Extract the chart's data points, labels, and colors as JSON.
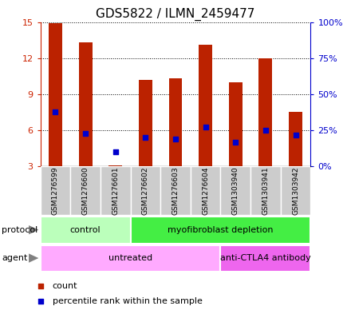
{
  "title": "GDS5822 / ILMN_2459477",
  "samples": [
    "GSM1276599",
    "GSM1276600",
    "GSM1276601",
    "GSM1276602",
    "GSM1276603",
    "GSM1276604",
    "GSM1303940",
    "GSM1303941",
    "GSM1303942"
  ],
  "counts": [
    14.9,
    13.3,
    3.1,
    10.2,
    10.3,
    13.1,
    10.0,
    12.0,
    7.5
  ],
  "percentiles": [
    38,
    23,
    10,
    20,
    19,
    27,
    17,
    25,
    22
  ],
  "bar_color": "#BB2200",
  "dot_color": "#0000CC",
  "ylim_left": [
    3,
    15
  ],
  "ylim_right": [
    0,
    100
  ],
  "yticks_left": [
    3,
    6,
    9,
    12,
    15
  ],
  "yticks_right": [
    0,
    25,
    50,
    75,
    100
  ],
  "ytick_labels_right": [
    "0%",
    "25%",
    "50%",
    "75%",
    "100%"
  ],
  "protocol_groups": [
    {
      "label": "control",
      "start": 0,
      "end": 3,
      "color": "#BBFFBB"
    },
    {
      "label": "myofibroblast depletion",
      "start": 3,
      "end": 9,
      "color": "#44EE44"
    }
  ],
  "agent_groups": [
    {
      "label": "untreated",
      "start": 0,
      "end": 6,
      "color": "#FFAAFF"
    },
    {
      "label": "anti-CTLA4 antibody",
      "start": 6,
      "end": 9,
      "color": "#EE66EE"
    }
  ],
  "legend_count_color": "#BB2200",
  "legend_pct_color": "#0000CC",
  "bar_width": 0.45,
  "grid_color": "black",
  "left_tick_color": "#CC2200",
  "right_tick_color": "#0000CC",
  "title_fontsize": 11,
  "tick_fontsize": 8,
  "label_fontsize": 8,
  "xtick_gray": "#CCCCCC"
}
